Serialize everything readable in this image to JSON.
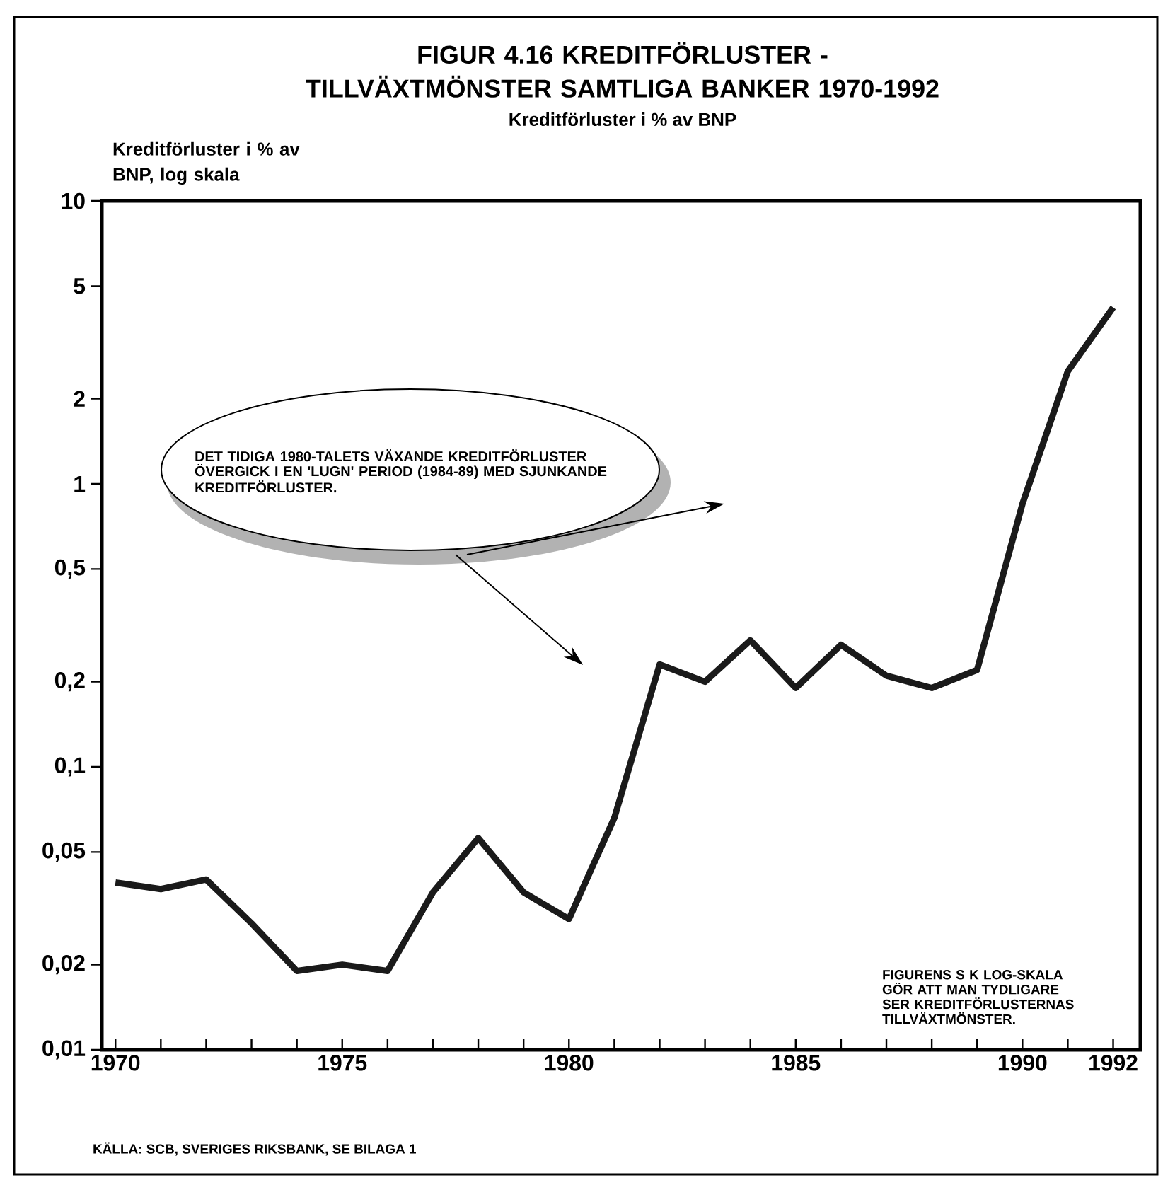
{
  "chart_data": {
    "type": "line",
    "title": "FIGUR 4.16    KREDITFÖRLUSTER - TILLVÄXTMÖNSTER SAMTLIGA BANKER 1970-1992",
    "subtitle": "Kreditförluster i % av BNP",
    "ylabel": "Kreditförluster i % av BNP, log skala",
    "x": [
      1970,
      1971,
      1972,
      1973,
      1974,
      1975,
      1976,
      1977,
      1978,
      1979,
      1980,
      1981,
      1982,
      1983,
      1984,
      1985,
      1986,
      1987,
      1988,
      1989,
      1990,
      1991,
      1992
    ],
    "series": [
      {
        "color": "#1a1a1a",
        "values": [
          0.039,
          0.037,
          0.04,
          0.028,
          0.019,
          0.02,
          0.019,
          0.036,
          0.056,
          0.036,
          0.029,
          0.066,
          0.23,
          0.2,
          0.28,
          0.19,
          0.27,
          0.21,
          0.19,
          0.22,
          0.85,
          2.5,
          4.2
        ]
      }
    ],
    "xlim": [
      1969.7,
      1992.6
    ],
    "ylim": [
      0.01,
      10
    ],
    "xticks": [
      1970,
      {
        "value": 1971,
        "label": null
      },
      {
        "value": 1972,
        "label": null
      },
      {
        "value": 1973,
        "label": null
      },
      {
        "value": 1974,
        "label": null
      },
      1975,
      {
        "value": 1976,
        "label": null
      },
      {
        "value": 1977,
        "label": null
      },
      {
        "value": 1978,
        "label": null
      },
      {
        "value": 1979,
        "label": null
      },
      1980,
      {
        "value": 1981,
        "label": null
      },
      {
        "value": 1982,
        "label": null
      },
      {
        "value": 1983,
        "label": null
      },
      {
        "value": 1984,
        "label": null
      },
      1985,
      {
        "value": 1986,
        "label": null
      },
      {
        "value": 1987,
        "label": null
      },
      {
        "value": 1988,
        "label": null
      },
      {
        "value": 1989,
        "label": null
      },
      1990,
      {
        "value": 1991,
        "label": null
      },
      1992
    ],
    "yticks": [
      {
        "value": 0.01,
        "label": "0,01"
      },
      {
        "value": 0.02,
        "label": "0,02"
      },
      {
        "value": 0.05,
        "label": "0,05"
      },
      {
        "value": 0.1,
        "label": "0,1"
      },
      {
        "value": 0.2,
        "label": "0,2"
      },
      {
        "value": 0.5,
        "label": "0,5"
      },
      1,
      2,
      5,
      10
    ],
    "log": "y",
    "grid": false,
    "marker": "none",
    "line_style": "solid",
    "annotations": [
      "DET TIDIGA 1980-TALETS VÄXANDE KREDITFÖRLUSTER ÖVERGICK I EN 'LUGN' PERIOD (1984-89) MED SJUNKANDE KREDITFÖRLUSTER.",
      "FIGURENS S K LOG-SKALA GÖR ATT MAN TYDLIGARE SER KREDITFÖRLUSTERNAS TILLVÄXTMÖNSTER.",
      "KÄLLA: SCB, SVERIGES RIKSBANK, SE BILAGA 1"
    ]
  }
}
